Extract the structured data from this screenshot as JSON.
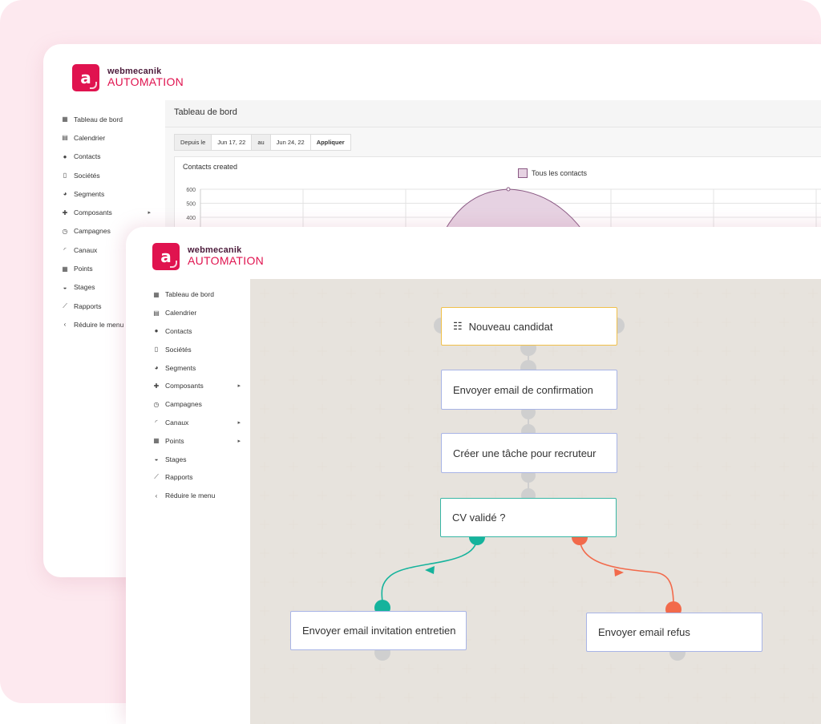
{
  "brand": {
    "line1": "webmecanik",
    "line2": "AUTOMATION",
    "logo_letter": "a",
    "accent": "#e0134f"
  },
  "back_window": {
    "menu": [
      {
        "icon": "grid-icon",
        "glyph": "▦",
        "label": "Tableau de bord"
      },
      {
        "icon": "calendar-icon",
        "glyph": "▤",
        "label": "Calendrier"
      },
      {
        "icon": "user-icon",
        "glyph": "●",
        "label": "Contacts"
      },
      {
        "icon": "building-icon",
        "glyph": "▯",
        "label": "Sociétés"
      },
      {
        "icon": "pie-icon",
        "glyph": "◕",
        "label": "Segments"
      },
      {
        "icon": "puzzle-icon",
        "glyph": "✚",
        "label": "Composants",
        "arrow": true
      },
      {
        "icon": "clock-icon",
        "glyph": "◷",
        "label": "Campagnes"
      },
      {
        "icon": "rss-icon",
        "glyph": "◜",
        "label": "Canaux"
      },
      {
        "icon": "calculator-icon",
        "glyph": "▦",
        "label": "Points"
      },
      {
        "icon": "tachometer-icon",
        "glyph": "◒",
        "label": "Stages"
      },
      {
        "icon": "line-chart-icon",
        "glyph": "⟋",
        "label": "Rapports"
      },
      {
        "icon": "chevron-left-icon",
        "glyph": "‹",
        "label": "Réduire le menu"
      }
    ],
    "header_title": "Tableau de bord",
    "date_filter": {
      "from_label": "Depuis le",
      "from": "Jun 17, 22",
      "to_label": "au",
      "to": "Jun 24, 22",
      "apply": "Appliquer"
    },
    "chart_title": "Contacts created"
  },
  "chart_data": {
    "type": "line",
    "title": "Contacts created",
    "series": [
      {
        "name": "Tous les contacts",
        "color": "#8a5a84",
        "fill": "#e6d2e2"
      }
    ],
    "y_ticks": [
      "600",
      "500",
      "400"
    ],
    "ylim": [
      0,
      600
    ],
    "grid": true,
    "legend_position": "top-center"
  },
  "front_window": {
    "menu": [
      {
        "icon": "grid-icon",
        "glyph": "▦",
        "label": "Tableau de bord"
      },
      {
        "icon": "calendar-icon",
        "glyph": "▤",
        "label": "Calendrier"
      },
      {
        "icon": "user-icon",
        "glyph": "●",
        "label": "Contacts"
      },
      {
        "icon": "building-icon",
        "glyph": "▯",
        "label": "Sociétés"
      },
      {
        "icon": "pie-icon",
        "glyph": "◕",
        "label": "Segments"
      },
      {
        "icon": "puzzle-icon",
        "glyph": "✚",
        "label": "Composants",
        "arrow": true
      },
      {
        "icon": "clock-icon",
        "glyph": "◷",
        "label": "Campagnes"
      },
      {
        "icon": "rss-icon",
        "glyph": "◜",
        "label": "Canaux",
        "arrow": true
      },
      {
        "icon": "calculator-icon",
        "glyph": "▦",
        "label": "Points",
        "arrow": true
      },
      {
        "icon": "tachometer-icon",
        "glyph": "◒",
        "label": "Stages"
      },
      {
        "icon": "line-chart-icon",
        "glyph": "⟋",
        "label": "Rapports"
      },
      {
        "icon": "chevron-left-icon",
        "glyph": "‹",
        "label": "Réduire le menu"
      }
    ],
    "workflow": {
      "nodes": {
        "start": "Nouveau candidat",
        "email_confirm": "Envoyer email de confirmation",
        "task": "Créer une tâche pour recruteur",
        "condition": "CV validé ?",
        "email_invite": "Envoyer email invitation entretien",
        "email_refuse": "Envoyer email refus"
      },
      "colors": {
        "yes": "#15b39c",
        "no": "#f26a4b",
        "port": "#cfcfcf"
      }
    }
  }
}
